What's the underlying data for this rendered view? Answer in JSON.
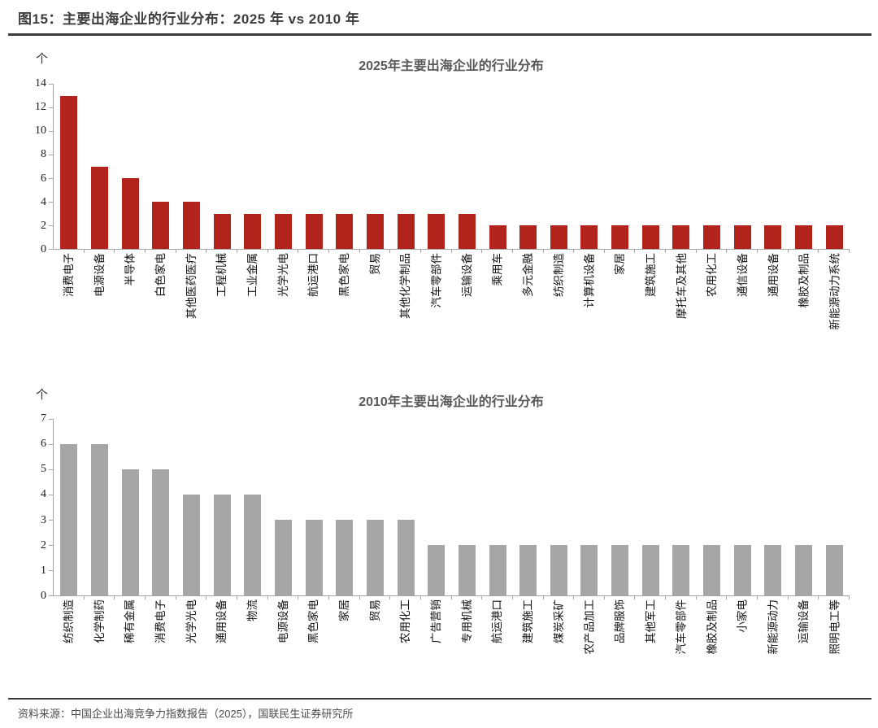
{
  "figure": {
    "title": "图15：主要出海企业的行业分布：2025 年 vs 2010 年"
  },
  "footer": {
    "source": "资料来源：中国企业出海竞争力指数报告（2025），国联民生证券研究所"
  },
  "chart_data": [
    {
      "type": "bar",
      "title": "2025年主要出海企业的行业分布",
      "unit_label": "个",
      "bar_color": "#b2231c",
      "ylim": [
        0,
        14
      ],
      "ytick_step": 2,
      "grid": false,
      "legend": false,
      "categories": [
        "消费电子",
        "电源设备",
        "半导体",
        "白色家电",
        "其他医药医疗",
        "工程机械",
        "工业金属",
        "光学光电",
        "航运港口",
        "黑色家电",
        "贸易",
        "其他化学制品",
        "汽车零部件",
        "运输设备",
        "乘用车",
        "多元金融",
        "纺织制造",
        "计算机设备",
        "家居",
        "建筑施工",
        "摩托车及其他",
        "农用化工",
        "通信设备",
        "通用设备",
        "橡胶及制品",
        "新能源动力系统"
      ],
      "values": [
        13,
        7,
        6,
        4,
        4,
        3,
        3,
        3,
        3,
        3,
        3,
        3,
        3,
        3,
        2,
        2,
        2,
        2,
        2,
        2,
        2,
        2,
        2,
        2,
        2,
        2
      ]
    },
    {
      "type": "bar",
      "title": "2010年主要出海企业的行业分布",
      "unit_label": "个",
      "bar_color": "#a6a6a6",
      "ylim": [
        0,
        7
      ],
      "ytick_step": 1,
      "grid": false,
      "legend": false,
      "categories": [
        "纺织制造",
        "化学制药",
        "稀有金属",
        "消费电子",
        "光学光电",
        "通用设备",
        "物流",
        "电源设备",
        "黑色家电",
        "家居",
        "贸易",
        "农用化工",
        "广告营销",
        "专用机械",
        "航运港口",
        "建筑施工",
        "煤炭采矿",
        "农产品加工",
        "品牌服饰",
        "其他军工",
        "汽车零部件",
        "橡胶及制品",
        "小家电",
        "新能源动力",
        "运输设备",
        "照明电工等"
      ],
      "values": [
        6,
        6,
        5,
        5,
        4,
        4,
        4,
        3,
        3,
        3,
        3,
        3,
        2,
        2,
        2,
        2,
        2,
        2,
        2,
        2,
        2,
        2,
        2,
        2,
        2,
        2
      ]
    }
  ]
}
